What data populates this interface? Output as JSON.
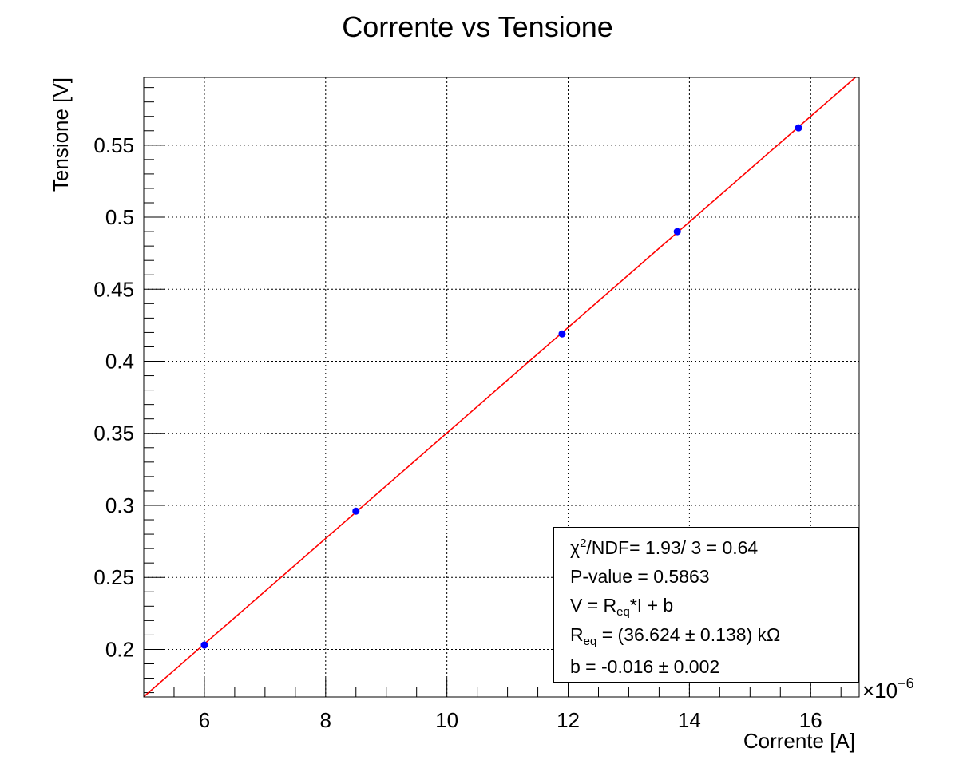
{
  "chart_data": {
    "type": "scatter",
    "title": "Corrente vs Tensione",
    "xlabel": "Corrente [A]",
    "ylabel": "Tensione [V]",
    "x_multiplier": "×10",
    "x_multiplier_exp": "−6",
    "xlim": [
      5.0,
      16.8
    ],
    "ylim": [
      0.167,
      0.597
    ],
    "grid": true,
    "x_ticks": [
      {
        "value": 6,
        "label": "6"
      },
      {
        "value": 8,
        "label": "8"
      },
      {
        "value": 10,
        "label": "10"
      },
      {
        "value": 12,
        "label": "12"
      },
      {
        "value": 14,
        "label": "14"
      },
      {
        "value": 16,
        "label": "16"
      }
    ],
    "y_ticks": [
      {
        "value": 0.2,
        "label": "0.2"
      },
      {
        "value": 0.25,
        "label": "0.25"
      },
      {
        "value": 0.3,
        "label": "0.3"
      },
      {
        "value": 0.35,
        "label": "0.35"
      },
      {
        "value": 0.4,
        "label": "0.4"
      },
      {
        "value": 0.45,
        "label": "0.45"
      },
      {
        "value": 0.5,
        "label": "0.5"
      },
      {
        "value": 0.55,
        "label": "0.55"
      }
    ],
    "series": [
      {
        "x": [
          6.0,
          8.5,
          11.9,
          13.8,
          15.8
        ],
        "y": [
          0.203,
          0.296,
          0.419,
          0.49,
          0.562
        ],
        "color": "#0000ff"
      }
    ],
    "fit": {
      "slope": 0.036624,
      "intercept": -0.016,
      "color": "#ff0000"
    },
    "stats": {
      "chi2_label": "χ",
      "chi2_sup": "2",
      "chi2_rest": "/NDF= 1.93/ 3 = 0.64",
      "pvalue": "P-value = 0.5863",
      "model_a": "V = R",
      "model_sub": "eq",
      "model_b": "*I + b",
      "req_a": "R",
      "req_sub": "eq",
      "req_b": " = (36.624 ± 0.138) kΩ",
      "b_line": "b = -0.016 ± 0.002"
    }
  }
}
